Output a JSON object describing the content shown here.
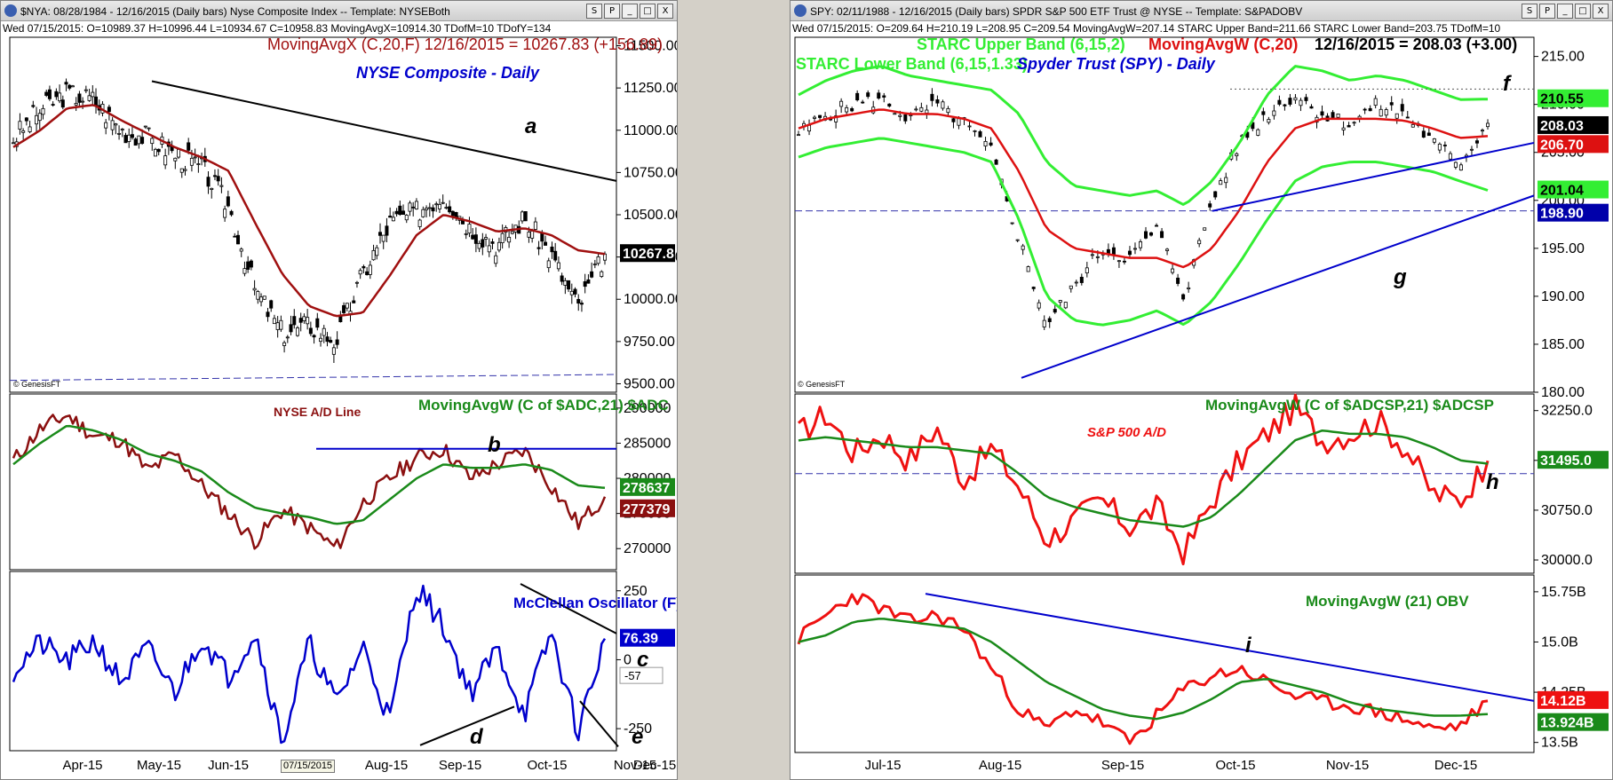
{
  "left": {
    "title_bar": "$NYA: 08/28/1984 - 12/16/2015 (Daily bars)  Nyse Composite Index  --  Template: NYSEBoth",
    "info_bar": "Wed 07/15/2015: O=10989.37 H=10996.44 L=10934.67 C=10958.83 MovingAvgX=10914.30 TDofM=10 TDofY=134",
    "window_buttons": [
      "S",
      "P",
      "_",
      "□",
      "X"
    ],
    "x_labels": [
      "Apr-15",
      "May-15",
      "Jun-15",
      "Aug-15",
      "Sep-15",
      "Oct-15",
      "Nov-15",
      "Dec-15"
    ],
    "date_box": "07/15/2015",
    "price": {
      "heading": "MovingAvgX (C,20,F)  12/16/2015 = 10267.83 (+156.89)",
      "subtitle": "NYSE Composite - Daily",
      "last_value": "10267.8",
      "watermark": "© GenesisFT",
      "ticks": [
        "11500.00",
        "11250.00",
        "11000.00",
        "10750.00",
        "10500.00",
        "10250.00",
        "10000.00",
        "9750.00",
        "9500.00"
      ],
      "annotation": "a"
    },
    "ad": {
      "heading": "MovingAvgW (C of $ADC,21)  $ADC",
      "subtitle": "NYSE A/D Line",
      "last_ma": "278637",
      "last_value": "277379",
      "ticks": [
        "290000",
        "285000",
        "280000",
        "275000",
        "270000"
      ],
      "annotation": "b"
    },
    "mcclellan": {
      "heading": "McClellan Oscillator (F)",
      "last_value": "76.39",
      "small_label": "-57",
      "ticks": [
        "250",
        "0",
        "-250"
      ],
      "annotations": [
        "c",
        "d",
        "e"
      ]
    }
  },
  "right": {
    "title_bar": "SPY: 02/11/1988 - 12/16/2015 (Daily bars)  SPDR S&P 500 ETF Trust @ NYSE  --  Template: S&PADOBV",
    "info_bar": "Wed 07/15/2015: O=209.64 H=210.19 L=208.95 C=209.54 MovingAvgW=207.14 STARC Upper Band=211.66 STARC Lower Band=203.75 TDofM=10",
    "window_buttons": [
      "S",
      "P",
      "_",
      "□",
      "X"
    ],
    "x_labels": [
      "Jul-15",
      "Aug-15",
      "Sep-15",
      "Oct-15",
      "Nov-15",
      "Dec-15"
    ],
    "price": {
      "heading_upper": "STARC Upper Band (6,15,2)",
      "heading_ma": "MovingAvgW (C,20)",
      "heading_value": "12/16/2015 = 208.03 (+3.00)",
      "heading_lower": "STARC Lower Band (6,15,1.33)",
      "subtitle": "Spyder Trust (SPY) - Daily",
      "watermark": "© GenesisFT",
      "last_upper": "210.55",
      "last_close": "208.03",
      "last_ma": "206.70",
      "last_lower": "201.04",
      "last_support": "198.90",
      "ticks": [
        "215.00",
        "210.00",
        "205.00",
        "200.00",
        "195.00",
        "190.00",
        "185.00",
        "180.00"
      ],
      "annotations": [
        "f",
        "g"
      ]
    },
    "ad": {
      "heading": "MovingAvgW (C of $ADCSP,21)  $ADCSP",
      "subtitle": "S&P 500 A/D",
      "last_value": "31495.0",
      "ticks": [
        "32250.0",
        "31500.0",
        "30750.0",
        "30000.0"
      ],
      "annotation": "h"
    },
    "obv": {
      "heading": "MovingAvgW (21)  OBV",
      "last_value": "14.12B",
      "last_ma": "13.924B",
      "ticks": [
        "15.75B",
        "15.0B",
        "14.25B",
        "13.5B"
      ],
      "annotation": "i"
    }
  },
  "colors": {
    "price_ma": "#a01010",
    "nyse_ad": "#8b1010",
    "green_ma": "#1a8a1a",
    "mcclellan": "#0000cc",
    "starc": "#33ee33",
    "spy_ma": "#dd1111",
    "spy_ad": "#ee1111",
    "trendline_blue": "#0000cc",
    "trendline_black": "#000000"
  },
  "chart_data": [
    {
      "type": "line",
      "title": "NYSE Composite - Daily",
      "xlabels": [
        "Apr-15",
        "May-15",
        "Jun-15",
        "Aug-15",
        "Sep-15",
        "Oct-15",
        "Nov-15",
        "Dec-15"
      ],
      "ylim": [
        9450,
        11550
      ],
      "series": [
        {
          "name": "$NYA",
          "values": [
            10950,
            11120,
            11220,
            11180,
            11000,
            10960,
            10860,
            10780,
            10550,
            10050,
            9800,
            9850,
            9750,
            10150,
            10450,
            10520,
            10620,
            10420,
            10320,
            10480,
            10260,
            9950,
            10267.83
          ]
        },
        {
          "name": "MovingAvgX (C,20,F)",
          "values": [
            10900,
            11000,
            11130,
            11150,
            11060,
            10980,
            10900,
            10840,
            10760,
            10450,
            10150,
            9960,
            9900,
            9920,
            10140,
            10380,
            10500,
            10460,
            10400,
            10420,
            10380,
            10290,
            10268
          ]
        }
      ],
      "annotations": [
        "a"
      ],
      "support": 9520
    },
    {
      "type": "line",
      "title": "NYSE A/D Line",
      "xlabels": [
        "Apr-15",
        "May-15",
        "Jun-15",
        "Aug-15",
        "Sep-15",
        "Oct-15",
        "Nov-15",
        "Dec-15"
      ],
      "ylim": [
        267000,
        292000
      ],
      "series": [
        {
          "name": "$ADC",
          "values": [
            282500,
            287000,
            289000,
            286000,
            285500,
            281000,
            283500,
            279000,
            275000,
            271000,
            275500,
            273000,
            270000,
            276500,
            280000,
            283000,
            284200,
            280000,
            282000,
            284000,
            279000,
            273500,
            277379
          ]
        },
        {
          "name": "MovingAvgW (C of $ADC,21)",
          "values": [
            282000,
            285000,
            287500,
            286800,
            285500,
            283500,
            282500,
            281000,
            278000,
            275800,
            275000,
            274500,
            273500,
            274000,
            277000,
            280000,
            282000,
            281500,
            281500,
            282000,
            281200,
            279000,
            278637
          ]
        }
      ],
      "resistance": 284200,
      "annotations": [
        "b"
      ]
    },
    {
      "type": "line",
      "title": "McClellan Oscillator (F)",
      "xlabels": [
        "Apr-15",
        "May-15",
        "Jun-15",
        "Aug-15",
        "Sep-15",
        "Oct-15",
        "Nov-15",
        "Dec-15"
      ],
      "ylim": [
        -330,
        320
      ],
      "series": [
        {
          "name": "McClellan Oscillator (F)",
          "values": [
            -40,
            60,
            -10,
            70,
            -80,
            40,
            -120,
            80,
            -60,
            100,
            -300,
            60,
            -160,
            50,
            -220,
            270,
            120,
            -120,
            40,
            -200,
            100,
            -260,
            76.39
          ]
        }
      ],
      "annotations": [
        "c",
        "d",
        "e"
      ]
    },
    {
      "type": "line",
      "title": "Spyder Trust (SPY) - Daily",
      "xlabels": [
        "Jul-15",
        "Aug-15",
        "Sep-15",
        "Oct-15",
        "Nov-15",
        "Dec-15"
      ],
      "ylim": [
        180,
        217
      ],
      "series": [
        {
          "name": "SPY",
          "values": [
            207,
            209,
            210,
            210.5,
            208.5,
            210,
            208,
            205,
            196,
            187,
            191,
            195,
            194,
            197,
            190,
            200,
            206,
            209,
            211,
            209,
            208,
            210,
            209,
            206,
            204,
            208.03
          ]
        },
        {
          "name": "MovingAvgW (C,20)",
          "values": [
            207.5,
            208.5,
            209,
            209.5,
            209,
            209,
            208.5,
            207.5,
            203,
            197,
            195,
            194.5,
            194,
            194,
            193,
            195,
            199,
            204,
            207.5,
            208.5,
            208.5,
            208.5,
            208.3,
            207.5,
            206.5,
            206.7
          ]
        },
        {
          "name": "STARC Upper Band (6,15,2)",
          "values": [
            211,
            212.5,
            213.5,
            214,
            213,
            212.5,
            212,
            211.5,
            209,
            204,
            201.5,
            201,
            200.5,
            201,
            199.5,
            202,
            206,
            211,
            214,
            213.5,
            212.5,
            213,
            212.5,
            211.5,
            210.5,
            210.55
          ]
        },
        {
          "name": "STARC Lower Band (6,15,1.33)",
          "values": [
            204.5,
            205.5,
            206,
            206.5,
            206,
            205.5,
            205,
            204,
            198,
            190,
            187.5,
            187,
            187.5,
            188.5,
            187,
            189.5,
            193.5,
            198,
            202,
            203.5,
            204,
            204,
            203.5,
            203,
            202,
            201.04
          ]
        }
      ],
      "support": 198.9,
      "annotations": [
        "f",
        "g"
      ]
    },
    {
      "type": "line",
      "title": "S&P 500 A/D",
      "xlabels": [
        "Jul-15",
        "Aug-15",
        "Sep-15",
        "Oct-15",
        "Nov-15",
        "Dec-15"
      ],
      "ylim": [
        29800,
        32500
      ],
      "series": [
        {
          "name": "$ADCSP",
          "values": [
            31900,
            32200,
            31600,
            31900,
            31500,
            32000,
            31200,
            31700,
            31100,
            30300,
            30600,
            30900,
            30500,
            30800,
            30100,
            30900,
            31500,
            31900,
            32300,
            31800,
            31900,
            32100,
            31700,
            31000,
            30900,
            31495
          ]
        },
        {
          "name": "MovingAvgW (C of $ADCSP,21)",
          "values": [
            31800,
            31850,
            31800,
            31750,
            31700,
            31700,
            31650,
            31600,
            31300,
            30950,
            30800,
            30700,
            30600,
            30550,
            30500,
            30650,
            31000,
            31400,
            31800,
            31950,
            31900,
            31900,
            31850,
            31700,
            31500,
            31450
          ]
        }
      ],
      "support": 31300,
      "annotations": [
        "h"
      ]
    },
    {
      "type": "line",
      "title": "OBV",
      "xlabels": [
        "Jul-15",
        "Aug-15",
        "Sep-15",
        "Oct-15",
        "Nov-15",
        "Dec-15"
      ],
      "ylim": [
        13.35,
        16.0
      ],
      "series": [
        {
          "name": "OBV",
          "values": [
            15.05,
            15.4,
            15.7,
            15.5,
            15.3,
            15.4,
            15.2,
            14.6,
            14.0,
            13.7,
            14.0,
            13.8,
            13.5,
            13.9,
            14.3,
            14.5,
            14.6,
            14.4,
            14.2,
            14.1,
            14.05,
            13.95,
            13.85,
            13.7,
            13.75,
            14.12
          ]
        },
        {
          "name": "MovingAvgW (21)",
          "values": [
            15.0,
            15.1,
            15.3,
            15.35,
            15.3,
            15.25,
            15.2,
            15.0,
            14.7,
            14.4,
            14.2,
            14.0,
            13.9,
            13.85,
            13.95,
            14.15,
            14.4,
            14.45,
            14.35,
            14.25,
            14.1,
            14.0,
            13.95,
            13.9,
            13.9,
            13.924
          ]
        }
      ],
      "annotations": [
        "i"
      ]
    }
  ]
}
